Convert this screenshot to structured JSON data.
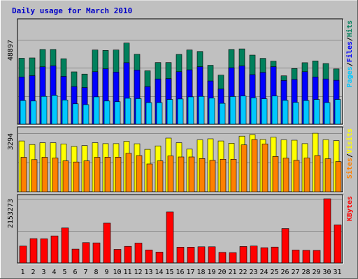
{
  "title": "Daily usage for March 2010",
  "colors": {
    "background": "#c0c0c0",
    "title": "#0000c8",
    "grid": "#8a8a8a",
    "hits": "#00805c",
    "files": "#0000ff",
    "pages": "#00c8ff",
    "visits": "#ffff00",
    "sites": "#ff8000",
    "kbytes": "#ff0000",
    "weekend_label": "#00805c",
    "weekday_label": "#000000"
  },
  "chart_data": [
    {
      "type": "bar",
      "panel": "hits-files-pages",
      "ymax_label": "48897",
      "ymax": 48897,
      "grid": true,
      "legend": [
        "Pages",
        "/",
        "Files",
        "/",
        "Hits"
      ],
      "categories": [
        "1",
        "2",
        "3",
        "4",
        "5",
        "6",
        "7",
        "8",
        "9",
        "10",
        "11",
        "12",
        "13",
        "14",
        "15",
        "16",
        "17",
        "18",
        "19",
        "20",
        "21",
        "22",
        "23",
        "24",
        "25",
        "26",
        "27",
        "28",
        "29",
        "30",
        "31"
      ],
      "weekend_days": [
        "6",
        "7",
        "13",
        "14",
        "20",
        "21",
        "27",
        "28"
      ],
      "series": [
        {
          "name": "Hits",
          "values": [
            38200,
            38400,
            43300,
            43300,
            37900,
            30300,
            29000,
            43000,
            42700,
            43000,
            47000,
            40500,
            30900,
            35700,
            35700,
            40400,
            43000,
            42100,
            34100,
            28400,
            43300,
            43600,
            40000,
            38100,
            36500,
            28000,
            32200,
            35600,
            36600,
            35100,
            32000
          ]
        },
        {
          "name": "Files",
          "values": [
            27300,
            28100,
            33200,
            33800,
            27700,
            21800,
            21200,
            30400,
            32100,
            30200,
            35600,
            31300,
            21800,
            26200,
            26400,
            30400,
            31500,
            33300,
            25000,
            20400,
            32700,
            33700,
            28700,
            30000,
            33300,
            25300,
            25900,
            30400,
            27300,
            26200,
            25400
          ]
        },
        {
          "name": "Pages",
          "values": [
            13700,
            13400,
            16100,
            16700,
            14000,
            11800,
            11300,
            15800,
            13400,
            13000,
            15000,
            14800,
            12500,
            12500,
            14300,
            14600,
            15800,
            16100,
            15100,
            12100,
            16000,
            16300,
            15300,
            14700,
            16300,
            13800,
            12600,
            13700,
            14300,
            12500,
            14300
          ]
        }
      ]
    },
    {
      "type": "bar",
      "panel": "visits-sites",
      "ymax_label": "3294",
      "ymax": 3294,
      "grid": true,
      "legend": [
        "Sites",
        "/",
        "Visits"
      ],
      "categories": [
        "1",
        "2",
        "3",
        "4",
        "5",
        "6",
        "7",
        "8",
        "9",
        "10",
        "11",
        "12",
        "13",
        "14",
        "15",
        "16",
        "17",
        "18",
        "19",
        "20",
        "21",
        "22",
        "23",
        "24",
        "25",
        "26",
        "27",
        "28",
        "29",
        "30",
        "31"
      ],
      "series": [
        {
          "name": "Visits",
          "values": [
            2860,
            2660,
            2760,
            2760,
            2690,
            2550,
            2600,
            2760,
            2710,
            2710,
            2840,
            2700,
            2390,
            2580,
            3020,
            2760,
            2400,
            2920,
            2980,
            2860,
            2730,
            3130,
            3220,
            2940,
            3070,
            2920,
            2900,
            2710,
            3290,
            2930,
            2880
          ]
        },
        {
          "name": "Sites",
          "values": [
            1940,
            1810,
            1940,
            1900,
            1740,
            1680,
            1740,
            1940,
            1950,
            1950,
            2170,
            2040,
            1570,
            1740,
            2020,
            1960,
            1960,
            1870,
            1770,
            1830,
            1830,
            2640,
            2940,
            2690,
            1990,
            1890,
            1770,
            1900,
            2040,
            1860,
            1700
          ]
        }
      ]
    },
    {
      "type": "bar",
      "panel": "kbytes",
      "ymax_label": "2153273",
      "ymax": 2153273,
      "grid": true,
      "legend": [
        "KBytes"
      ],
      "categories": [
        "1",
        "2",
        "3",
        "4",
        "5",
        "6",
        "7",
        "8",
        "9",
        "10",
        "11",
        "12",
        "13",
        "14",
        "15",
        "16",
        "17",
        "18",
        "19",
        "20",
        "21",
        "22",
        "23",
        "24",
        "25",
        "26",
        "27",
        "28",
        "29",
        "30",
        "31"
      ],
      "series": [
        {
          "name": "KBytes",
          "values": [
            567000,
            818000,
            812000,
            909000,
            1174000,
            466000,
            684000,
            674000,
            1336000,
            456000,
            558000,
            666000,
            436000,
            364000,
            1710000,
            530000,
            530000,
            544000,
            544000,
            356000,
            347000,
            552000,
            569000,
            512000,
            534000,
            1156000,
            434000,
            424000,
            422000,
            2153000,
            1279000
          ]
        }
      ]
    }
  ]
}
